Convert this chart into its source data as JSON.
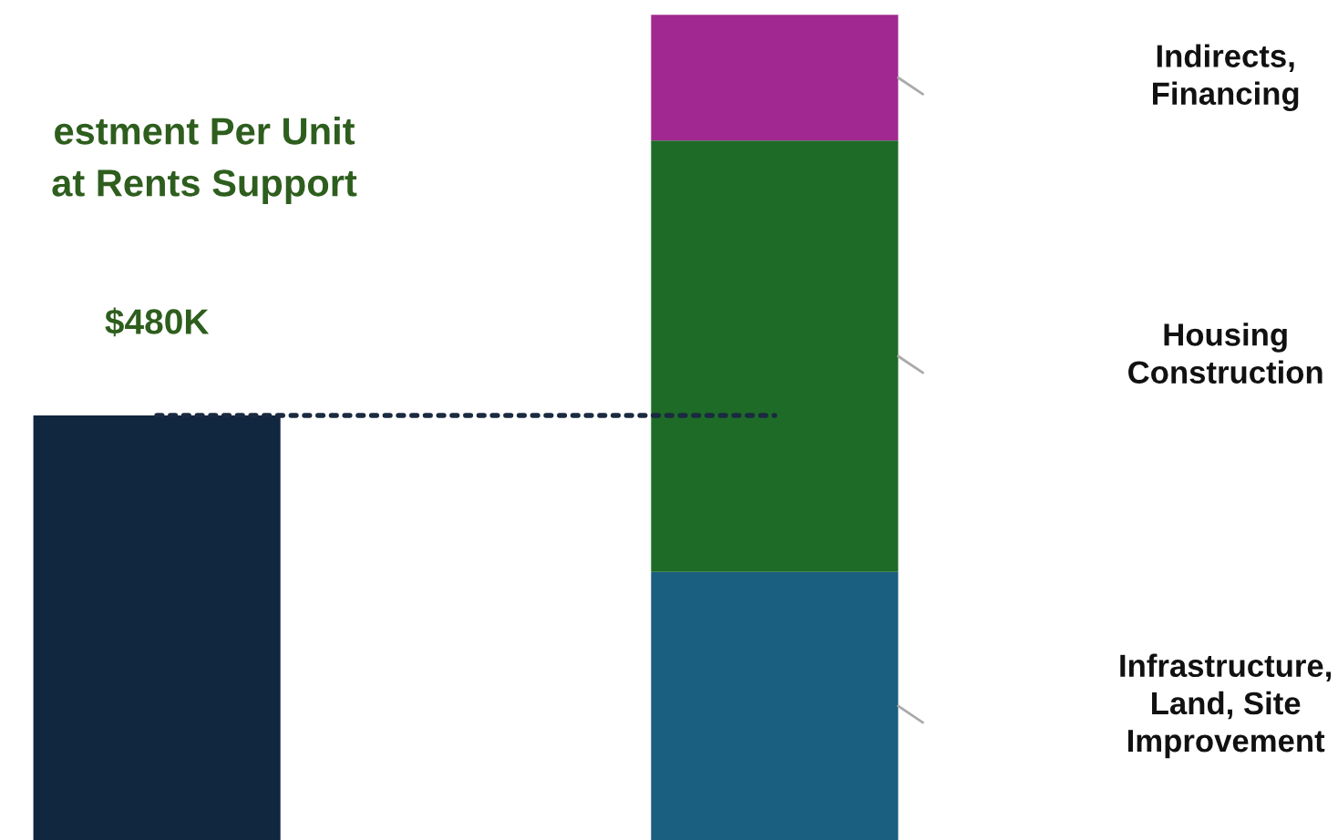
{
  "chart_data": {
    "type": "bar",
    "title": "estment Per Unit\nat Rents Support",
    "categories": [
      null,
      null
    ],
    "stacked": true,
    "series": [
      {
        "color": "#11263f",
        "values": [
          480,
          null
        ],
        "value_labels": [
          "$480K",
          null
        ]
      },
      {
        "name": "Infrastructure,\nLand, Site\nImprovement",
        "color": "#1a5e80",
        "values": [
          null,
          303
        ]
      },
      {
        "name": "Housing\nConstruction",
        "color": "#1e6b28",
        "values": [
          null,
          488
        ]
      },
      {
        "name": "Indirects,\nFinancing",
        "color": "#a02890",
        "values": [
          null,
          142
        ]
      }
    ],
    "ref_lines": [
      {
        "axis": "y",
        "value": 480,
        "line_style": "dotted"
      }
    ]
  }
}
